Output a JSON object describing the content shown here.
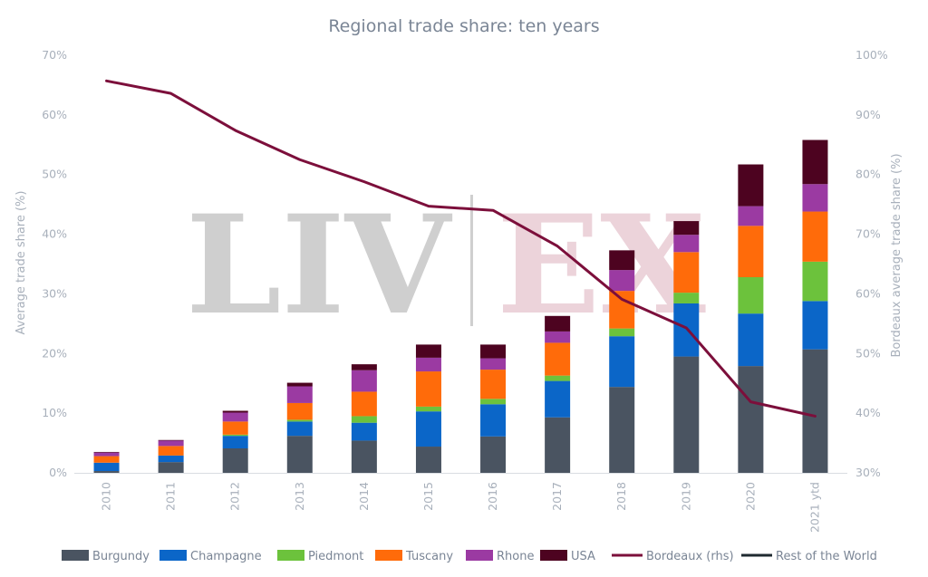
{
  "watermark": {
    "left": "LIV",
    "right": "EX"
  },
  "chart_data": {
    "type": "bar",
    "stacked": true,
    "title": "Regional trade share: ten years",
    "ylabel": "Average trade share (%)",
    "y2label": "Bordeaux average trade share (%)",
    "ylim": [
      0,
      70
    ],
    "y2lim": [
      30,
      100
    ],
    "yticks": [
      "0%",
      "10%",
      "20%",
      "30%",
      "40%",
      "50%",
      "60%",
      "70%"
    ],
    "y2ticks": [
      "30%",
      "40%",
      "50%",
      "60%",
      "70%",
      "80%",
      "90%",
      "100%"
    ],
    "categories": [
      "2010",
      "2011",
      "2012",
      "2013",
      "2014",
      "2015",
      "2016",
      "2017",
      "2018",
      "2019",
      "2020",
      "2021 ytd"
    ],
    "series": [
      {
        "name": "Burgundy",
        "color": "#4a5461",
        "values": [
          0.3,
          1.8,
          4.1,
          6.2,
          5.4,
          4.4,
          6.1,
          9.3,
          14.4,
          19.5,
          17.9,
          20.7
        ]
      },
      {
        "name": "Champagne",
        "color": "#0b66c8",
        "values": [
          1.4,
          1.1,
          2.1,
          2.4,
          3.0,
          5.9,
          5.4,
          6.1,
          8.5,
          8.9,
          8.8,
          8.1
        ]
      },
      {
        "name": "Piedmont",
        "color": "#6cc23c",
        "values": [
          0.0,
          0.0,
          0.2,
          0.3,
          1.1,
          0.8,
          0.9,
          0.9,
          1.3,
          1.8,
          6.1,
          6.6
        ]
      },
      {
        "name": "Tuscany",
        "color": "#ff6b0a",
        "values": [
          1.1,
          1.6,
          2.2,
          2.8,
          4.1,
          5.9,
          4.9,
          5.5,
          6.3,
          6.8,
          8.6,
          8.4
        ]
      },
      {
        "name": "Rhone",
        "color": "#9b3aa2",
        "values": [
          0.6,
          0.9,
          1.5,
          2.8,
          3.6,
          2.3,
          1.9,
          1.9,
          3.5,
          2.9,
          3.3,
          4.6
        ]
      },
      {
        "name": "USA",
        "color": "#4d0320",
        "values": [
          0.1,
          0.1,
          0.3,
          0.6,
          1.0,
          2.2,
          2.3,
          2.6,
          3.3,
          2.3,
          7.0,
          7.4
        ]
      }
    ],
    "line_series": {
      "name": "Bordeaux (rhs)",
      "color": "#7c0f3b",
      "axis": "right",
      "values": [
        95.7,
        93.6,
        87.4,
        82.5,
        78.8,
        74.7,
        74.0,
        68.0,
        59.1,
        54.3,
        41.9,
        39.5
      ]
    },
    "legend": {
      "position": "bottom",
      "items": [
        {
          "name": "Burgundy",
          "color": "#4a5461",
          "kind": "box"
        },
        {
          "name": "Champagne",
          "color": "#0b66c8",
          "kind": "box"
        },
        {
          "name": "Piedmont",
          "color": "#6cc23c",
          "kind": "box"
        },
        {
          "name": "Tuscany",
          "color": "#ff6b0a",
          "kind": "box"
        },
        {
          "name": "Rhone",
          "color": "#9b3aa2",
          "kind": "box"
        },
        {
          "name": "USA",
          "color": "#4d0320",
          "kind": "box"
        },
        {
          "name": "Bordeaux (rhs)",
          "color": "#7c0f3b",
          "kind": "line"
        },
        {
          "name": "Rest of the World",
          "color": "#1f2a30",
          "kind": "line"
        }
      ]
    },
    "grid": false
  }
}
